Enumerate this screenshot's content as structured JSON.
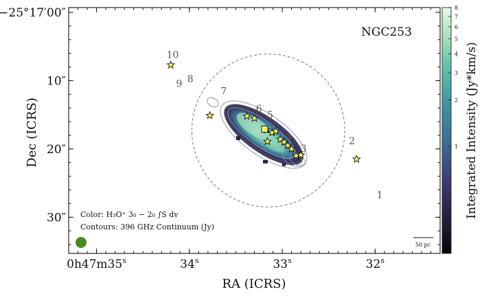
{
  "chart_data": {
    "type": "heatmap",
    "title": "NGC253",
    "xlabel": "RA (ICRS)",
    "ylabel": "Dec (ICRS)",
    "colorbar_label": "Integrated Intensity (Jy*km/s)",
    "colorbar_scale": "log",
    "colorbar_range": [
      0.2,
      8
    ],
    "colorbar_ticks": [
      {
        "value": 8,
        "label": "8"
      },
      {
        "value": 7,
        "label": "7"
      },
      {
        "value": 6,
        "label": "6"
      },
      {
        "value": 5,
        "label": "5"
      },
      {
        "value": 4,
        "label": "4"
      },
      {
        "value": 3,
        "label": "3"
      },
      {
        "value": 2,
        "label": "2"
      },
      {
        "value": 1,
        "label": "1"
      }
    ],
    "x_axis": {
      "unit": "s (RA seconds, 0h47m)",
      "range": [
        35.3,
        31.3
      ],
      "ticks": [
        {
          "value": 35,
          "label_main": "0h47m35",
          "label_sup": "s"
        },
        {
          "value": 34,
          "label_main": "34",
          "label_sup": "s"
        },
        {
          "value": 33,
          "label_main": "33",
          "label_sup": "s"
        },
        {
          "value": 32,
          "label_main": "32",
          "label_sup": "s"
        }
      ]
    },
    "y_axis": {
      "unit": "arcsec offset from -25°17'00\"",
      "range": [
        -35.3,
        0.7
      ],
      "ticks": [
        {
          "value": 0,
          "label": "−25°17′00″"
        },
        {
          "value": -10,
          "label": "10″"
        },
        {
          "value": -20,
          "label": "20″"
        },
        {
          "value": -30,
          "label": "30″"
        }
      ]
    },
    "legend_text": [
      "Color: H₃O⁺ 3₀ − 2₀ ∫S dv",
      "Contours: 396 GHz Continuum (Jy)"
    ],
    "scalebar_label": "50 pc",
    "circle": {
      "center_ra": 33.15,
      "center_dec": -17.3,
      "radius_arcsec": 11.2,
      "style": "dashed"
    },
    "labels": [
      {
        "text": "1",
        "ra": 31.95,
        "dec": -27.2
      },
      {
        "text": "2",
        "ra": 32.25,
        "dec": -19.3
      },
      {
        "text": "3",
        "ra": 32.77,
        "dec": -20.4
      },
      {
        "text": "4",
        "ra": 32.93,
        "dec": -18.7
      },
      {
        "text": "5",
        "ra": 33.13,
        "dec": -15.5
      },
      {
        "text": "6",
        "ra": 33.25,
        "dec": -14.6
      },
      {
        "text": "7",
        "ra": 33.63,
        "dec": -12.0
      },
      {
        "text": "8",
        "ra": 33.99,
        "dec": -10.2
      },
      {
        "text": "9",
        "ra": 34.11,
        "dec": -10.9
      },
      {
        "text": "10",
        "ra": 34.18,
        "dec": -6.7
      }
    ],
    "stars": [
      {
        "ra": 34.2,
        "dec": -7.7
      },
      {
        "ra": 33.78,
        "dec": -15.1
      },
      {
        "ra": 32.2,
        "dec": -21.5
      },
      {
        "ra": 33.38,
        "dec": -15.2
      },
      {
        "ra": 33.3,
        "dec": -15.5
      },
      {
        "ra": 33.17,
        "dec": -17.2
      },
      {
        "ra": 33.11,
        "dec": -17.6
      },
      {
        "ra": 33.07,
        "dec": -17.4
      },
      {
        "ra": 33.02,
        "dec": -18.6
      },
      {
        "ra": 32.98,
        "dec": -19.0
      },
      {
        "ra": 32.94,
        "dec": -19.5
      },
      {
        "ra": 32.9,
        "dec": -20.0
      },
      {
        "ra": 32.85,
        "dec": -21.0
      },
      {
        "ra": 32.8,
        "dec": -20.9
      },
      {
        "ra": 33.16,
        "dec": -18.9
      }
    ],
    "square_marker": {
      "ra": 33.19,
      "dec": -17.1
    },
    "emission_region": {
      "center_ra": 33.02,
      "center_dec": -18.6,
      "peak_intensity": 8
    }
  },
  "beam_color": "#4a8a26",
  "marker_color": "#f5f36a"
}
